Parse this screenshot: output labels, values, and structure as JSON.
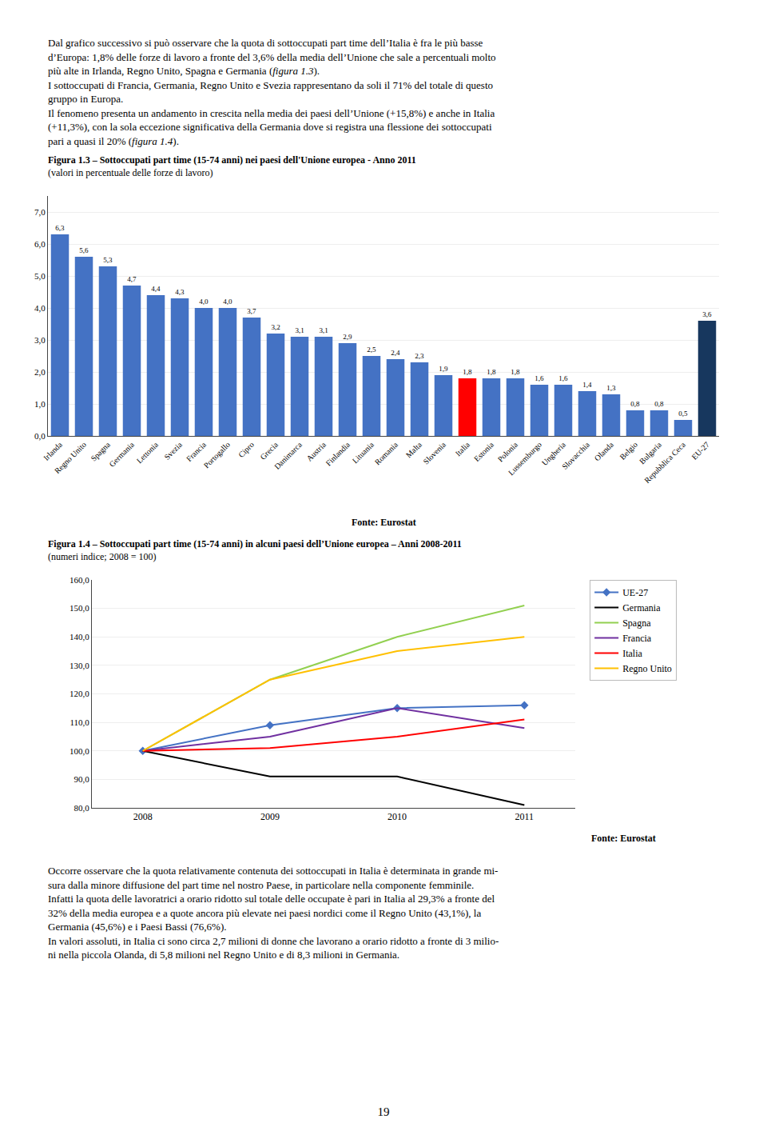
{
  "page_text_top": [
    [
      {
        "text": "Dal grafico successivo si può osservare che la quota di sottoccupati part time dell’Italia è fra le più basse",
        "italic": false
      }
    ],
    [
      {
        "text": "d’Europa: 1,8% delle forze di lavoro a fronte del 3,6% della media dell’Unione che sale a percentuali molto",
        "italic": false
      }
    ],
    [
      {
        "text": "più alte in Irlanda, Regno Unito, Spagna e Germania (",
        "italic": false
      },
      {
        "text": "figura 1.3",
        "italic": true
      },
      {
        "text": ").",
        "italic": false
      }
    ],
    [
      {
        "text": "I sottoccupati di Francia, Germania, Regno Unito e Svezia rappresentano da soli il 71% del totale di questo",
        "italic": false
      }
    ],
    [
      {
        "text": "gruppo in Europa.",
        "italic": false
      }
    ],
    [
      {
        "text": "Il fenomeno presenta un andamento in crescita nella media dei paesi dell’Unione (+15,8%) e anche in Italia",
        "italic": false
      }
    ],
    [
      {
        "text": "(+11,3%), con la sola eccezione significativa della Germania dove si registra una flessione dei sottoccupati",
        "italic": false
      }
    ],
    [
      {
        "text": "pari a quasi il 20% (",
        "italic": false
      },
      {
        "text": "figura 1.4",
        "italic": true
      },
      {
        "text": ").",
        "italic": false
      }
    ]
  ],
  "page_text_bottom": [
    "Occorre osservare che la quota relativamente contenuta dei sottoccupati in Italia è determinata in grande mi-",
    "sura dalla minore diffusione del part time nel nostro Paese, in particolare nella componente femminile.",
    "Infatti la quota delle lavoratrici a orario ridotto sul totale delle occupate è pari in Italia al 29,3% a fronte del",
    "32% della media europea e a quote ancora più elevate nei paesi nordici come il Regno Unito (43,1%), la",
    "Germania (45,6%) e i Paesi Bassi (76,6%).",
    "In valori assoluti, in Italia ci sono circa 2,7 milioni di donne che lavorano a orario ridotto a fronte di 3 milio-",
    "ni nella piccola Olanda, di 5,8 milioni nel Regno Unito e di 8,3 milioni in Germania."
  ],
  "page_number": "19",
  "chart_data": [
    {
      "type": "bar",
      "title": "Figura 1.3 – Sottoccupati part time (15-74 anni) nei paesi dell'Unione europea - Anno 2011",
      "subtitle": "(valori in percentuale delle forze di lavoro)",
      "categories": [
        "Irlanda",
        "Regno Unito",
        "Spagna",
        "Germania",
        "Lettonia",
        "Svezia",
        "Francia",
        "Portogallo",
        "Cipro",
        "Grecia",
        "Danimarca",
        "Austria",
        "Finlandia",
        "Lituania",
        "Romania",
        "Malta",
        "Slovenia",
        "Italia",
        "Estonia",
        "Polonia",
        "Lussemburgo",
        "Ungheria",
        "Slovacchia",
        "Olanda",
        "Belgio",
        "Bulgaria",
        "Repubblica Ceca",
        "EU-27"
      ],
      "values": [
        6.3,
        5.6,
        5.3,
        4.7,
        4.4,
        4.3,
        4.0,
        4.0,
        3.7,
        3.2,
        3.1,
        3.1,
        2.9,
        2.5,
        2.4,
        2.3,
        1.9,
        1.8,
        1.8,
        1.8,
        1.6,
        1.6,
        1.4,
        1.3,
        0.8,
        0.8,
        0.5,
        3.6
      ],
      "value_labels": [
        "6,3",
        "5,6",
        "5,3",
        "4,7",
        "4,4",
        "4,3",
        "4,0",
        "4,0",
        "3,7",
        "3,2",
        "3,1",
        "3,1",
        "2,9",
        "2,5",
        "2,4",
        "2,3",
        "1,9",
        "1,8",
        "1,8",
        "1,8",
        "1,6",
        "1,6",
        "1,4",
        "1,3",
        "0,8",
        "0,8",
        "0,5",
        "3,6"
      ],
      "colors": [
        "#4472C4",
        "#4472C4",
        "#4472C4",
        "#4472C4",
        "#4472C4",
        "#4472C4",
        "#4472C4",
        "#4472C4",
        "#4472C4",
        "#4472C4",
        "#4472C4",
        "#4472C4",
        "#4472C4",
        "#4472C4",
        "#4472C4",
        "#4472C4",
        "#4472C4",
        "#FF0000",
        "#4472C4",
        "#4472C4",
        "#4472C4",
        "#4472C4",
        "#4472C4",
        "#4472C4",
        "#4472C4",
        "#4472C4",
        "#4472C4",
        "#17375E"
      ],
      "ylim": [
        0.0,
        7.5
      ],
      "yticks": [
        {
          "value": 0.0,
          "label": "0,0"
        },
        {
          "value": 1.0,
          "label": "1,0"
        },
        {
          "value": 2.0,
          "label": "2,0"
        },
        {
          "value": 3.0,
          "label": "3,0"
        },
        {
          "value": 4.0,
          "label": "4,0"
        },
        {
          "value": 5.0,
          "label": "5,0"
        },
        {
          "value": 6.0,
          "label": "6,0"
        },
        {
          "value": 7.0,
          "label": "7,0"
        }
      ],
      "grid": true,
      "data_labels": true,
      "annotations": [
        "Fonte: Eurostat"
      ]
    },
    {
      "type": "line",
      "title": "Figura 1.4 – Sottoccupati part time (15-74 anni) in alcuni paesi dell’Unione europea – Anni 2008-2011",
      "subtitle": "(numeri indice; 2008 = 100)",
      "x": [
        2008,
        2009,
        2010,
        2011
      ],
      "xlim": [
        2007.6,
        2011.4
      ],
      "xticks": [
        2008,
        2009,
        2010,
        2011
      ],
      "series": [
        {
          "name": "UE-27",
          "color": "#4472C4",
          "marker": "diamond",
          "values": [
            100,
            109,
            115,
            116
          ]
        },
        {
          "name": "Germania",
          "color": "#000000",
          "values": [
            100,
            91,
            91,
            81
          ]
        },
        {
          "name": "Spagna",
          "color": "#92D050",
          "values": [
            100,
            125,
            140,
            151
          ]
        },
        {
          "name": "Francia",
          "color": "#7030A0",
          "values": [
            100,
            105,
            115,
            108
          ]
        },
        {
          "name": "Italia",
          "color": "#FF0000",
          "values": [
            100,
            101,
            105,
            111
          ]
        },
        {
          "name": "Regno Unito",
          "color": "#FFC000",
          "values": [
            100,
            125,
            135,
            140
          ]
        }
      ],
      "ylim": [
        80.0,
        160.0
      ],
      "yticks": [
        {
          "value": 80.0,
          "label": "80,0"
        },
        {
          "value": 90.0,
          "label": "90,0"
        },
        {
          "value": 100.0,
          "label": "100,0"
        },
        {
          "value": 110.0,
          "label": "110,0"
        },
        {
          "value": 120.0,
          "label": "120,0"
        },
        {
          "value": 130.0,
          "label": "130,0"
        },
        {
          "value": 140.0,
          "label": "140,0"
        },
        {
          "value": 150.0,
          "label": "150,0"
        },
        {
          "value": 160.0,
          "label": "160,0"
        }
      ],
      "grid": true,
      "legend": "right",
      "annotations": [
        "Fonte: Eurostat"
      ]
    }
  ]
}
